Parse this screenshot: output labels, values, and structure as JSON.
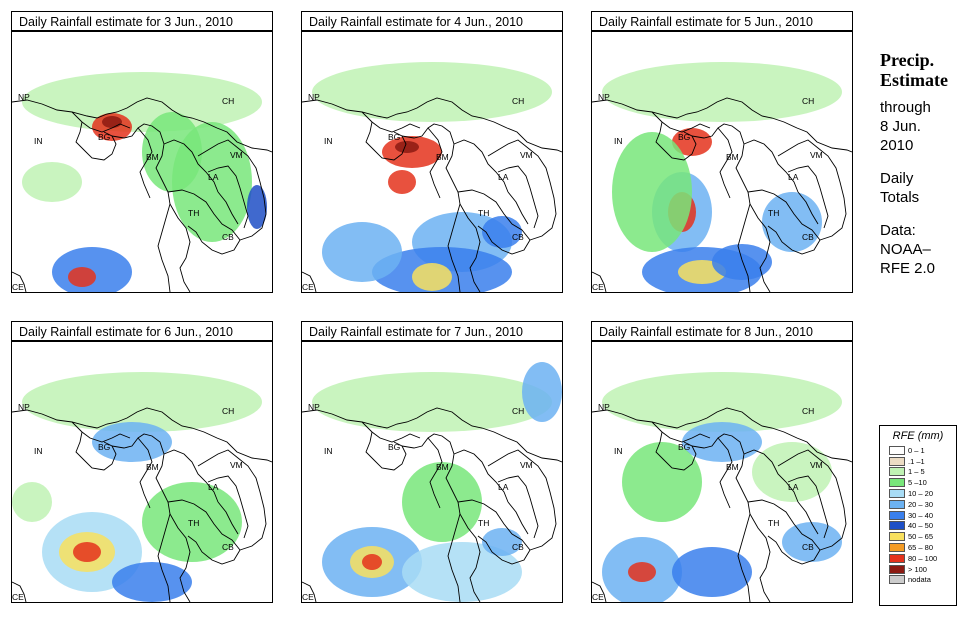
{
  "panels": [
    {
      "title": "Daily Rainfall estimate for  3 Jun., 2010"
    },
    {
      "title": "Daily Rainfall estimate for  4 Jun., 2010"
    },
    {
      "title": "Daily Rainfall estimate for  5 Jun., 2010"
    },
    {
      "title": "Daily Rainfall estimate for  6 Jun., 2010"
    },
    {
      "title": "Daily Rainfall estimate for  7 Jun., 2010"
    },
    {
      "title": "Daily Rainfall estimate for  8 Jun., 2010"
    }
  ],
  "map_labels": {
    "np": "NP",
    "ch": "CH",
    "in": "IN",
    "bg": "BG",
    "bm": "BM",
    "vm": "VM",
    "la": "LA",
    "th": "TH",
    "cb": "CB",
    "ce": "CE"
  },
  "side": {
    "heading1": "Precip.",
    "heading2": "Estimate",
    "through": "through",
    "date1": "8 Jun.",
    "date2": "2010",
    "daily1": "Daily",
    "daily2": "Totals",
    "data1": "Data:",
    "data2": "NOAA–",
    "data3": "RFE 2.0"
  },
  "legend": {
    "title": "RFE (mm)",
    "items": [
      {
        "label": "0 – 1",
        "color": "#ffffff"
      },
      {
        "label": ".1 –1",
        "color": "#ecdcc4"
      },
      {
        "label": "1 – 5",
        "color": "#c0f2b4"
      },
      {
        "label": "5 –10",
        "color": "#78e67a"
      },
      {
        "label": "10 – 20",
        "color": "#a8dcf5"
      },
      {
        "label": "20 – 30",
        "color": "#6cb2f2"
      },
      {
        "label": "30 – 40",
        "color": "#3a7fec"
      },
      {
        "label": "40 – 50",
        "color": "#1e4fc6"
      },
      {
        "label": "50 – 65",
        "color": "#f8e05e"
      },
      {
        "label": "65 – 80",
        "color": "#f49c26"
      },
      {
        "label": "80 – 100",
        "color": "#e4321c"
      },
      {
        "label": "> 100",
        "color": "#8c1a12"
      },
      {
        "label": "nodata",
        "color": "#cccccc"
      }
    ]
  }
}
